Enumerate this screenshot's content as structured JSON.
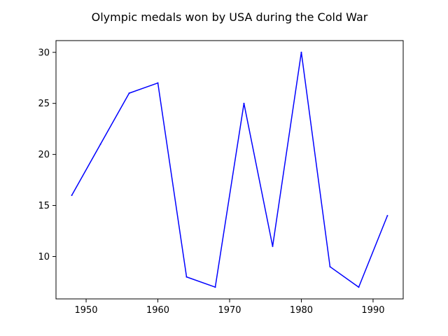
{
  "chart_data": {
    "type": "line",
    "title": "Olympic medals won by USA during the Cold War",
    "xlabel": "",
    "ylabel": "",
    "x": [
      1948,
      1952,
      1956,
      1960,
      1964,
      1968,
      1972,
      1976,
      1980,
      1984,
      1988,
      1992
    ],
    "series": [
      {
        "values": [
          16,
          21,
          26,
          27,
          8,
          7,
          25,
          11,
          30,
          9,
          7,
          14
        ],
        "color": "#0000ff"
      }
    ],
    "xlim": [
      1945.8,
      1994.2
    ],
    "ylim": [
      5.85,
      31.15
    ],
    "xticks": [
      1950,
      1960,
      1970,
      1980,
      1990
    ],
    "yticks": [
      10,
      15,
      20,
      25,
      30
    ],
    "grid": false,
    "legend": "none"
  }
}
